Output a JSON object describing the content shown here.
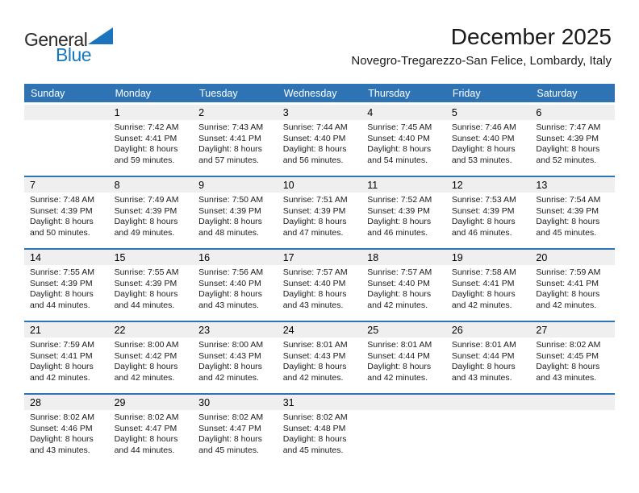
{
  "logo": {
    "part1": "General",
    "part2": "Blue",
    "triangle_color": "#1b74bc"
  },
  "header": {
    "title": "December 2025",
    "location": "Novegro-Tregarezzo-San Felice, Lombardy, Italy"
  },
  "colors": {
    "header_blue": "#2e74b5",
    "week_separator_blue": "#2e74b5",
    "day_number_strip": "#efefef",
    "logo_blue": "#1878be"
  },
  "calendar": {
    "day_headers": [
      "Sunday",
      "Monday",
      "Tuesday",
      "Wednesday",
      "Thursday",
      "Friday",
      "Saturday"
    ],
    "weeks": [
      [
        {
          "day": "",
          "sunrise": "",
          "sunset": "",
          "daylight": ""
        },
        {
          "day": "1",
          "sunrise": "Sunrise: 7:42 AM",
          "sunset": "Sunset: 4:41 PM",
          "daylight": "Daylight: 8 hours and 59 minutes."
        },
        {
          "day": "2",
          "sunrise": "Sunrise: 7:43 AM",
          "sunset": "Sunset: 4:41 PM",
          "daylight": "Daylight: 8 hours and 57 minutes."
        },
        {
          "day": "3",
          "sunrise": "Sunrise: 7:44 AM",
          "sunset": "Sunset: 4:40 PM",
          "daylight": "Daylight: 8 hours and 56 minutes."
        },
        {
          "day": "4",
          "sunrise": "Sunrise: 7:45 AM",
          "sunset": "Sunset: 4:40 PM",
          "daylight": "Daylight: 8 hours and 54 minutes."
        },
        {
          "day": "5",
          "sunrise": "Sunrise: 7:46 AM",
          "sunset": "Sunset: 4:40 PM",
          "daylight": "Daylight: 8 hours and 53 minutes."
        },
        {
          "day": "6",
          "sunrise": "Sunrise: 7:47 AM",
          "sunset": "Sunset: 4:39 PM",
          "daylight": "Daylight: 8 hours and 52 minutes."
        }
      ],
      [
        {
          "day": "7",
          "sunrise": "Sunrise: 7:48 AM",
          "sunset": "Sunset: 4:39 PM",
          "daylight": "Daylight: 8 hours and 50 minutes."
        },
        {
          "day": "8",
          "sunrise": "Sunrise: 7:49 AM",
          "sunset": "Sunset: 4:39 PM",
          "daylight": "Daylight: 8 hours and 49 minutes."
        },
        {
          "day": "9",
          "sunrise": "Sunrise: 7:50 AM",
          "sunset": "Sunset: 4:39 PM",
          "daylight": "Daylight: 8 hours and 48 minutes."
        },
        {
          "day": "10",
          "sunrise": "Sunrise: 7:51 AM",
          "sunset": "Sunset: 4:39 PM",
          "daylight": "Daylight: 8 hours and 47 minutes."
        },
        {
          "day": "11",
          "sunrise": "Sunrise: 7:52 AM",
          "sunset": "Sunset: 4:39 PM",
          "daylight": "Daylight: 8 hours and 46 minutes."
        },
        {
          "day": "12",
          "sunrise": "Sunrise: 7:53 AM",
          "sunset": "Sunset: 4:39 PM",
          "daylight": "Daylight: 8 hours and 46 minutes."
        },
        {
          "day": "13",
          "sunrise": "Sunrise: 7:54 AM",
          "sunset": "Sunset: 4:39 PM",
          "daylight": "Daylight: 8 hours and 45 minutes."
        }
      ],
      [
        {
          "day": "14",
          "sunrise": "Sunrise: 7:55 AM",
          "sunset": "Sunset: 4:39 PM",
          "daylight": "Daylight: 8 hours and 44 minutes."
        },
        {
          "day": "15",
          "sunrise": "Sunrise: 7:55 AM",
          "sunset": "Sunset: 4:39 PM",
          "daylight": "Daylight: 8 hours and 44 minutes."
        },
        {
          "day": "16",
          "sunrise": "Sunrise: 7:56 AM",
          "sunset": "Sunset: 4:40 PM",
          "daylight": "Daylight: 8 hours and 43 minutes."
        },
        {
          "day": "17",
          "sunrise": "Sunrise: 7:57 AM",
          "sunset": "Sunset: 4:40 PM",
          "daylight": "Daylight: 8 hours and 43 minutes."
        },
        {
          "day": "18",
          "sunrise": "Sunrise: 7:57 AM",
          "sunset": "Sunset: 4:40 PM",
          "daylight": "Daylight: 8 hours and 42 minutes."
        },
        {
          "day": "19",
          "sunrise": "Sunrise: 7:58 AM",
          "sunset": "Sunset: 4:41 PM",
          "daylight": "Daylight: 8 hours and 42 minutes."
        },
        {
          "day": "20",
          "sunrise": "Sunrise: 7:59 AM",
          "sunset": "Sunset: 4:41 PM",
          "daylight": "Daylight: 8 hours and 42 minutes."
        }
      ],
      [
        {
          "day": "21",
          "sunrise": "Sunrise: 7:59 AM",
          "sunset": "Sunset: 4:41 PM",
          "daylight": "Daylight: 8 hours and 42 minutes."
        },
        {
          "day": "22",
          "sunrise": "Sunrise: 8:00 AM",
          "sunset": "Sunset: 4:42 PM",
          "daylight": "Daylight: 8 hours and 42 minutes."
        },
        {
          "day": "23",
          "sunrise": "Sunrise: 8:00 AM",
          "sunset": "Sunset: 4:43 PM",
          "daylight": "Daylight: 8 hours and 42 minutes."
        },
        {
          "day": "24",
          "sunrise": "Sunrise: 8:01 AM",
          "sunset": "Sunset: 4:43 PM",
          "daylight": "Daylight: 8 hours and 42 minutes."
        },
        {
          "day": "25",
          "sunrise": "Sunrise: 8:01 AM",
          "sunset": "Sunset: 4:44 PM",
          "daylight": "Daylight: 8 hours and 42 minutes."
        },
        {
          "day": "26",
          "sunrise": "Sunrise: 8:01 AM",
          "sunset": "Sunset: 4:44 PM",
          "daylight": "Daylight: 8 hours and 43 minutes."
        },
        {
          "day": "27",
          "sunrise": "Sunrise: 8:02 AM",
          "sunset": "Sunset: 4:45 PM",
          "daylight": "Daylight: 8 hours and 43 minutes."
        }
      ],
      [
        {
          "day": "28",
          "sunrise": "Sunrise: 8:02 AM",
          "sunset": "Sunset: 4:46 PM",
          "daylight": "Daylight: 8 hours and 43 minutes."
        },
        {
          "day": "29",
          "sunrise": "Sunrise: 8:02 AM",
          "sunset": "Sunset: 4:47 PM",
          "daylight": "Daylight: 8 hours and 44 minutes."
        },
        {
          "day": "30",
          "sunrise": "Sunrise: 8:02 AM",
          "sunset": "Sunset: 4:47 PM",
          "daylight": "Daylight: 8 hours and 45 minutes."
        },
        {
          "day": "31",
          "sunrise": "Sunrise: 8:02 AM",
          "sunset": "Sunset: 4:48 PM",
          "daylight": "Daylight: 8 hours and 45 minutes."
        },
        {
          "day": "",
          "sunrise": "",
          "sunset": "",
          "daylight": ""
        },
        {
          "day": "",
          "sunrise": "",
          "sunset": "",
          "daylight": ""
        },
        {
          "day": "",
          "sunrise": "",
          "sunset": "",
          "daylight": ""
        }
      ]
    ]
  }
}
